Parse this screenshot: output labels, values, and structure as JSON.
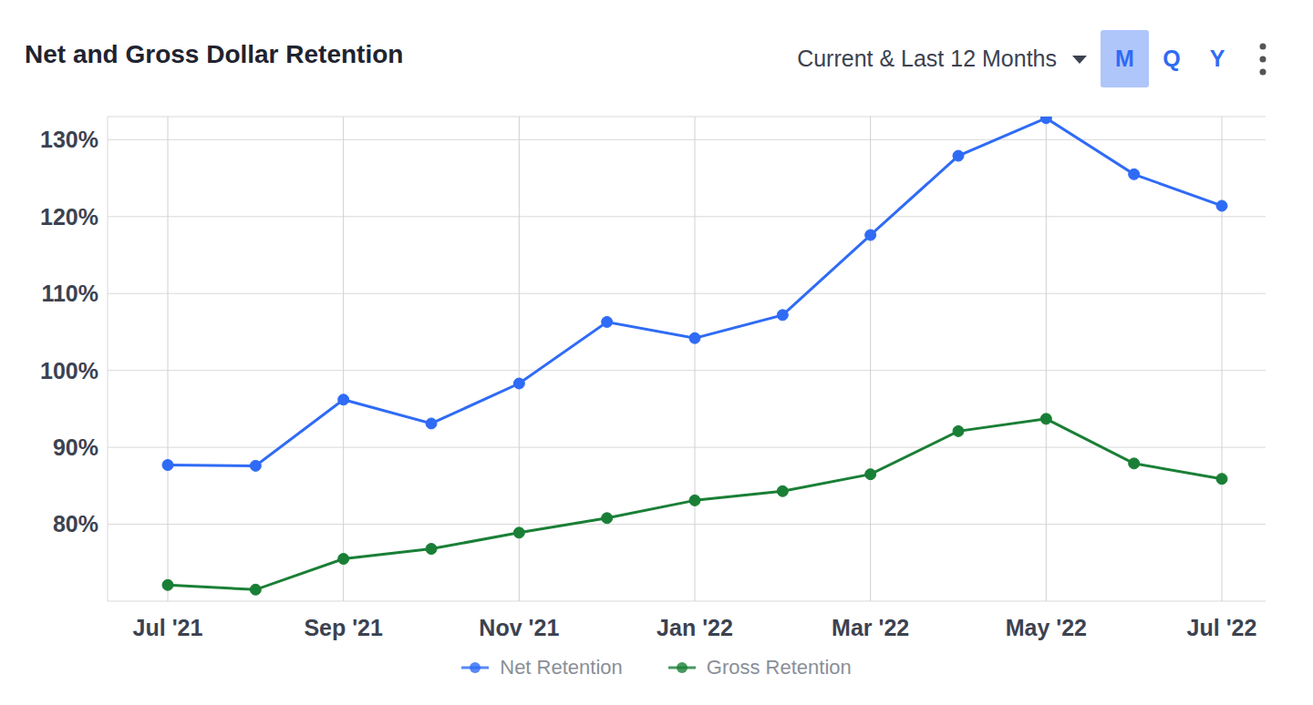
{
  "chart_data": {
    "type": "line",
    "title": "Net and Gross Dollar Retention",
    "annotations": [
      "Current & Last 12 Months",
      "M",
      "Q",
      "Y"
    ],
    "categories": [
      "Jul '21",
      null,
      "Sep '21",
      null,
      "Nov '21",
      null,
      "Jan '22",
      null,
      "Mar '22",
      null,
      "May '22",
      null,
      "Jul '22"
    ],
    "series": [
      {
        "name": "Net Retention",
        "color": "#2f6bf5",
        "values": [
          87.7,
          87.6,
          96.2,
          93.1,
          98.3,
          106.3,
          104.2,
          107.2,
          117.6,
          127.9,
          132.8,
          125.5,
          121.4
        ]
      },
      {
        "name": "Gross Retention",
        "color": "#1a7f36",
        "values": [
          72.1,
          71.5,
          75.5,
          76.8,
          78.9,
          80.8,
          83.1,
          84.3,
          86.5,
          92.1,
          93.7,
          87.9,
          85.9
        ]
      }
    ],
    "ylim": [
      70,
      133
    ],
    "yticks": [
      {
        "value": 80,
        "label": "80%"
      },
      {
        "value": 90,
        "label": "90%"
      },
      {
        "value": 100,
        "label": "100%"
      },
      {
        "value": 110,
        "label": "110%"
      },
      {
        "value": 120,
        "label": "120%"
      },
      {
        "value": 130,
        "label": "130%"
      }
    ],
    "grid": true,
    "legend": "bottom",
    "marker": "circle"
  }
}
